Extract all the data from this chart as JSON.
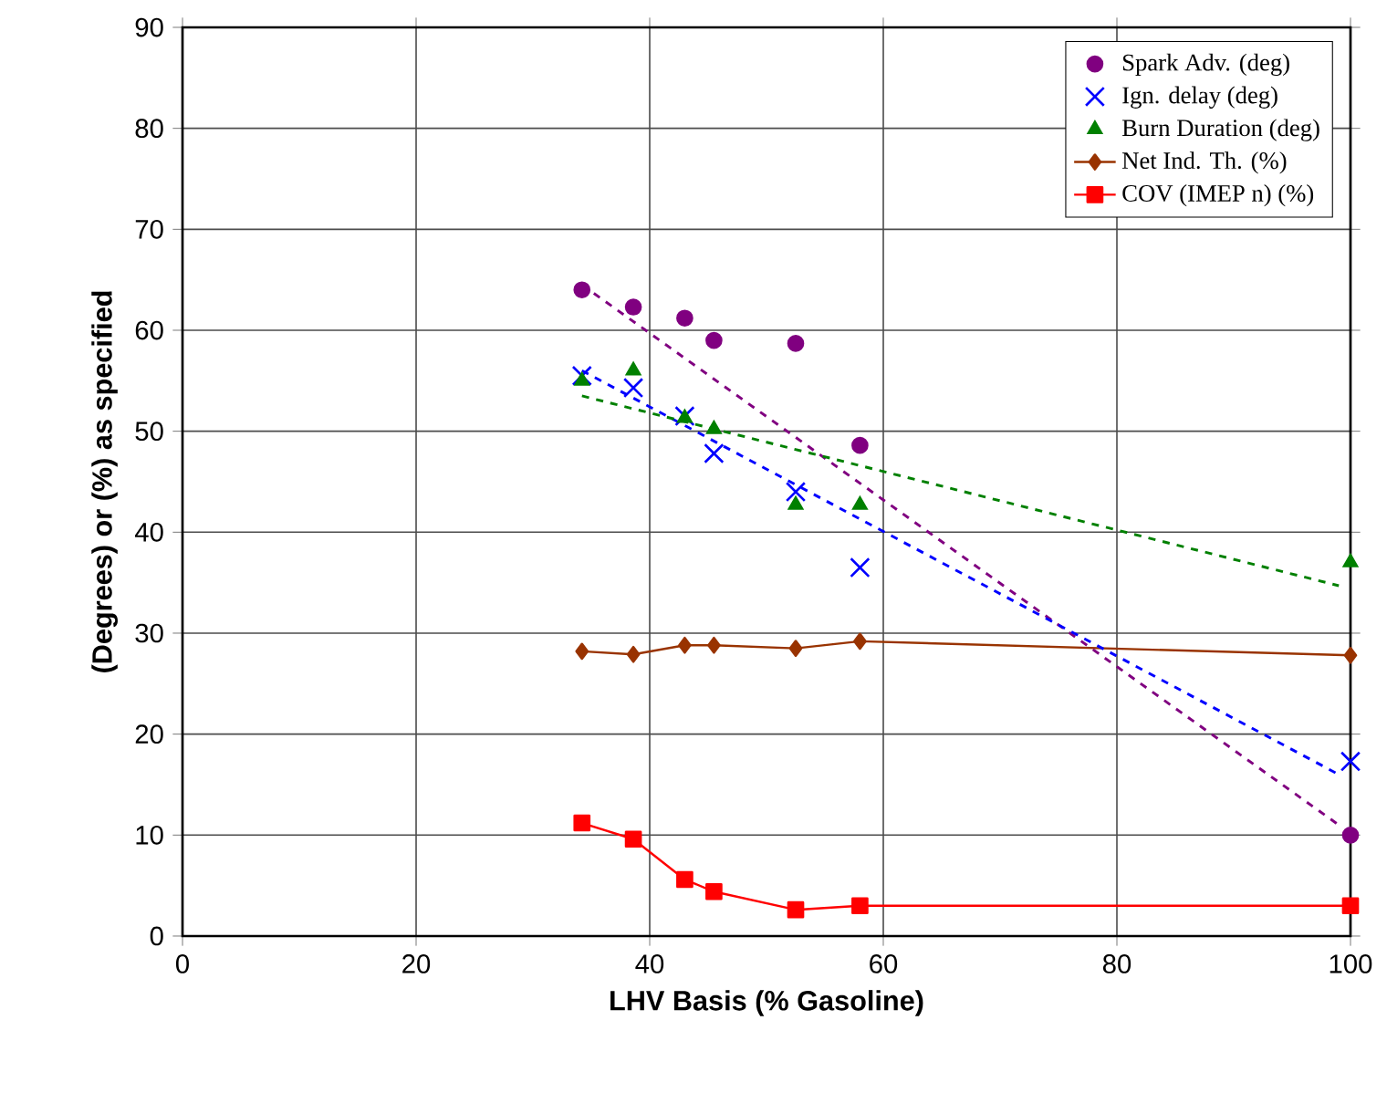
{
  "chart_data": {
    "type": "scatter",
    "xlabel": "LHV Basis (% Gasoline)",
    "ylabel": "(Degrees) or (%) as specified",
    "xlim": [
      0,
      100
    ],
    "ylim": [
      0,
      90
    ],
    "xticks": [
      0,
      20,
      40,
      60,
      80,
      100
    ],
    "yticks": [
      0,
      10,
      20,
      30,
      40,
      50,
      60,
      70,
      80,
      90
    ],
    "grid": true,
    "legend": "top right",
    "series": [
      {
        "name": "Spark Adv. (deg)",
        "marker": "circle",
        "color": "#800080",
        "x": [
          34.2,
          38.6,
          43,
          45.5,
          52.5,
          58,
          100
        ],
        "values": [
          64,
          62.3,
          61.2,
          59,
          58.7,
          48.6,
          10
        ]
      },
      {
        "name": "Ign. delay (deg)",
        "marker": "cross",
        "color": "#0000ff",
        "x": [
          34.2,
          38.6,
          43,
          45.5,
          52.5,
          58,
          100
        ],
        "values": [
          55.5,
          54.3,
          51.5,
          47.8,
          44,
          36.5,
          17.3
        ]
      },
      {
        "name": "Burn Duration (deg)",
        "marker": "triangle",
        "color": "#008000",
        "x": [
          34.2,
          38.6,
          43,
          45.5,
          52.5,
          58,
          100
        ],
        "values": [
          55,
          56,
          51.3,
          50.2,
          42.7,
          42.7,
          37
        ]
      },
      {
        "name": "Net Ind. Th. (%)",
        "type": "line",
        "marker": "diamond",
        "line_style": "solid",
        "color": "#993300",
        "x": [
          34.2,
          38.6,
          43,
          45.5,
          52.5,
          58,
          100
        ],
        "values": [
          28.2,
          27.9,
          28.8,
          28.8,
          28.5,
          29.2,
          27.8
        ]
      },
      {
        "name": "COV (IMEP n) (%)",
        "type": "line",
        "marker": "square",
        "line_style": "solid",
        "color": "#ff0000",
        "x": [
          34.2,
          38.6,
          43,
          45.5,
          52.5,
          58,
          100
        ],
        "values": [
          11.2,
          9.6,
          5.6,
          4.4,
          2.6,
          3.0,
          3.0
        ]
      },
      {
        "type": "line",
        "marker": "none",
        "line_style": "dashed",
        "color": "#800080",
        "x": [
          34.2,
          99
        ],
        "values": [
          64.5,
          11
        ]
      },
      {
        "type": "line",
        "marker": "none",
        "line_style": "dashed",
        "color": "#0000ff",
        "x": [
          34.2,
          99
        ],
        "values": [
          56,
          16
        ]
      },
      {
        "type": "line",
        "marker": "none",
        "line_style": "dashed",
        "color": "#008000",
        "x": [
          34.2,
          99
        ],
        "values": [
          53.5,
          34.7
        ]
      }
    ]
  }
}
